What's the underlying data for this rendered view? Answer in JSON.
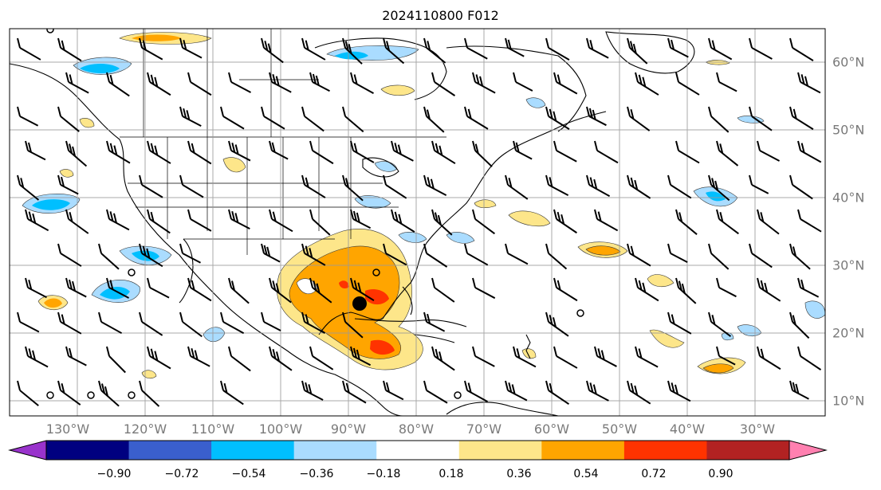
{
  "title": "2024110800 F012",
  "lon_labels": [
    "130°W",
    "120°W",
    "110°W",
    "100°W",
    "90°W",
    "80°W",
    "70°W",
    "60°W",
    "50°W",
    "40°W",
    "30°W"
  ],
  "lat_labels": [
    "60°N",
    "50°N",
    "40°N",
    "30°N",
    "20°N",
    "10°N"
  ],
  "colorbar": {
    "ticks": [
      "−0.90",
      "−0.72",
      "−0.54",
      "−0.36",
      "−0.18",
      "0.18",
      "0.36",
      "0.54",
      "0.72",
      "0.90"
    ],
    "colors": [
      "#9933cc",
      "#000080",
      "#3a5fcd",
      "#00bfff",
      "#aadcff",
      "#ffffff",
      "#fde68a",
      "#ffa500",
      "#ff3300",
      "#b22222",
      "#ff80b0"
    ]
  },
  "marker": {
    "label": "storm-center",
    "color": "#000000"
  }
}
